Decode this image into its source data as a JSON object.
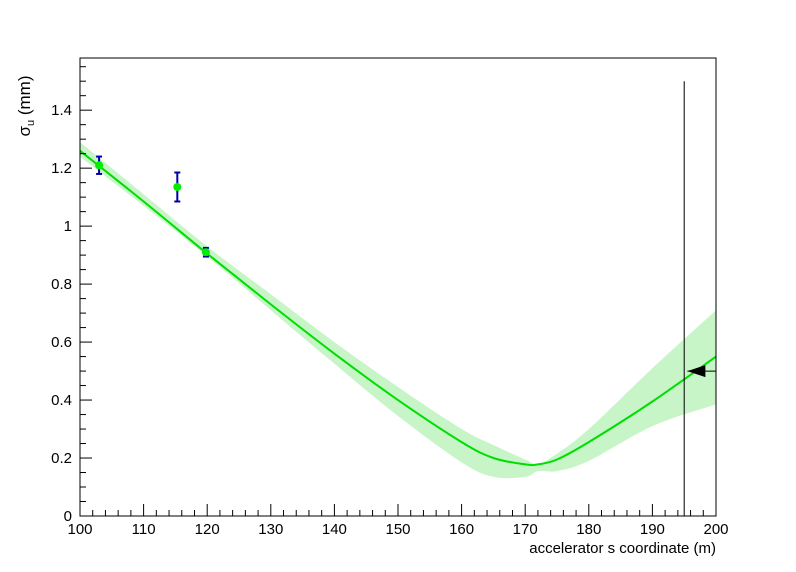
{
  "chart_data": {
    "type": "line",
    "title": "",
    "xlabel": "accelerator s coordinate (m)",
    "ylabel": "σu (mm)",
    "ylabel_main": "σ",
    "ylabel_sub": "u",
    "ylabel_unit": " (mm)",
    "xlim": [
      100,
      200
    ],
    "ylim": [
      0,
      1.58
    ],
    "x_ticks": [
      100,
      110,
      120,
      130,
      140,
      150,
      160,
      170,
      180,
      190,
      200
    ],
    "y_ticks": [
      0,
      0.2,
      0.4,
      0.6,
      0.8,
      1,
      1.2,
      1.4
    ],
    "y_tick_labels": [
      "0",
      "0.2",
      "0.4",
      "0.6",
      "0.8",
      "1",
      "1.2",
      "1.4"
    ],
    "grid": false,
    "series": [
      {
        "kind": "measurements",
        "color": "#00ee00",
        "error_bar_color": "#0000aa",
        "points": [
          {
            "x": 103,
            "y": 1.21,
            "err": 0.03
          },
          {
            "x": 115.3,
            "y": 1.135,
            "err": 0.05
          },
          {
            "x": 119.8,
            "y": 0.91,
            "err": 0.015
          }
        ]
      },
      {
        "kind": "fit",
        "color": "#00dd00",
        "band_color": "#c8f5c8",
        "x": [
          100,
          110,
          120,
          130,
          140,
          150,
          160,
          165,
          170,
          172,
          175,
          180,
          190,
          200
        ],
        "y": [
          1.26,
          1.085,
          0.905,
          0.73,
          0.56,
          0.4,
          0.255,
          0.2,
          0.178,
          0.178,
          0.195,
          0.255,
          0.395,
          0.55
        ],
        "band_low": [
          1.24,
          1.07,
          0.895,
          0.71,
          0.525,
          0.345,
          0.185,
          0.135,
          0.135,
          0.155,
          0.155,
          0.19,
          0.31,
          0.385
        ],
        "band_high": [
          1.29,
          1.11,
          0.93,
          0.765,
          0.6,
          0.445,
          0.3,
          0.245,
          0.195,
          0.18,
          0.215,
          0.3,
          0.51,
          0.71
        ]
      }
    ],
    "annotations": [
      {
        "kind": "vertical-line",
        "x": 195,
        "y_top": 1.5
      },
      {
        "kind": "arrow-left",
        "x_start": 200,
        "x_end": 195.5,
        "y": 0.5
      }
    ]
  }
}
